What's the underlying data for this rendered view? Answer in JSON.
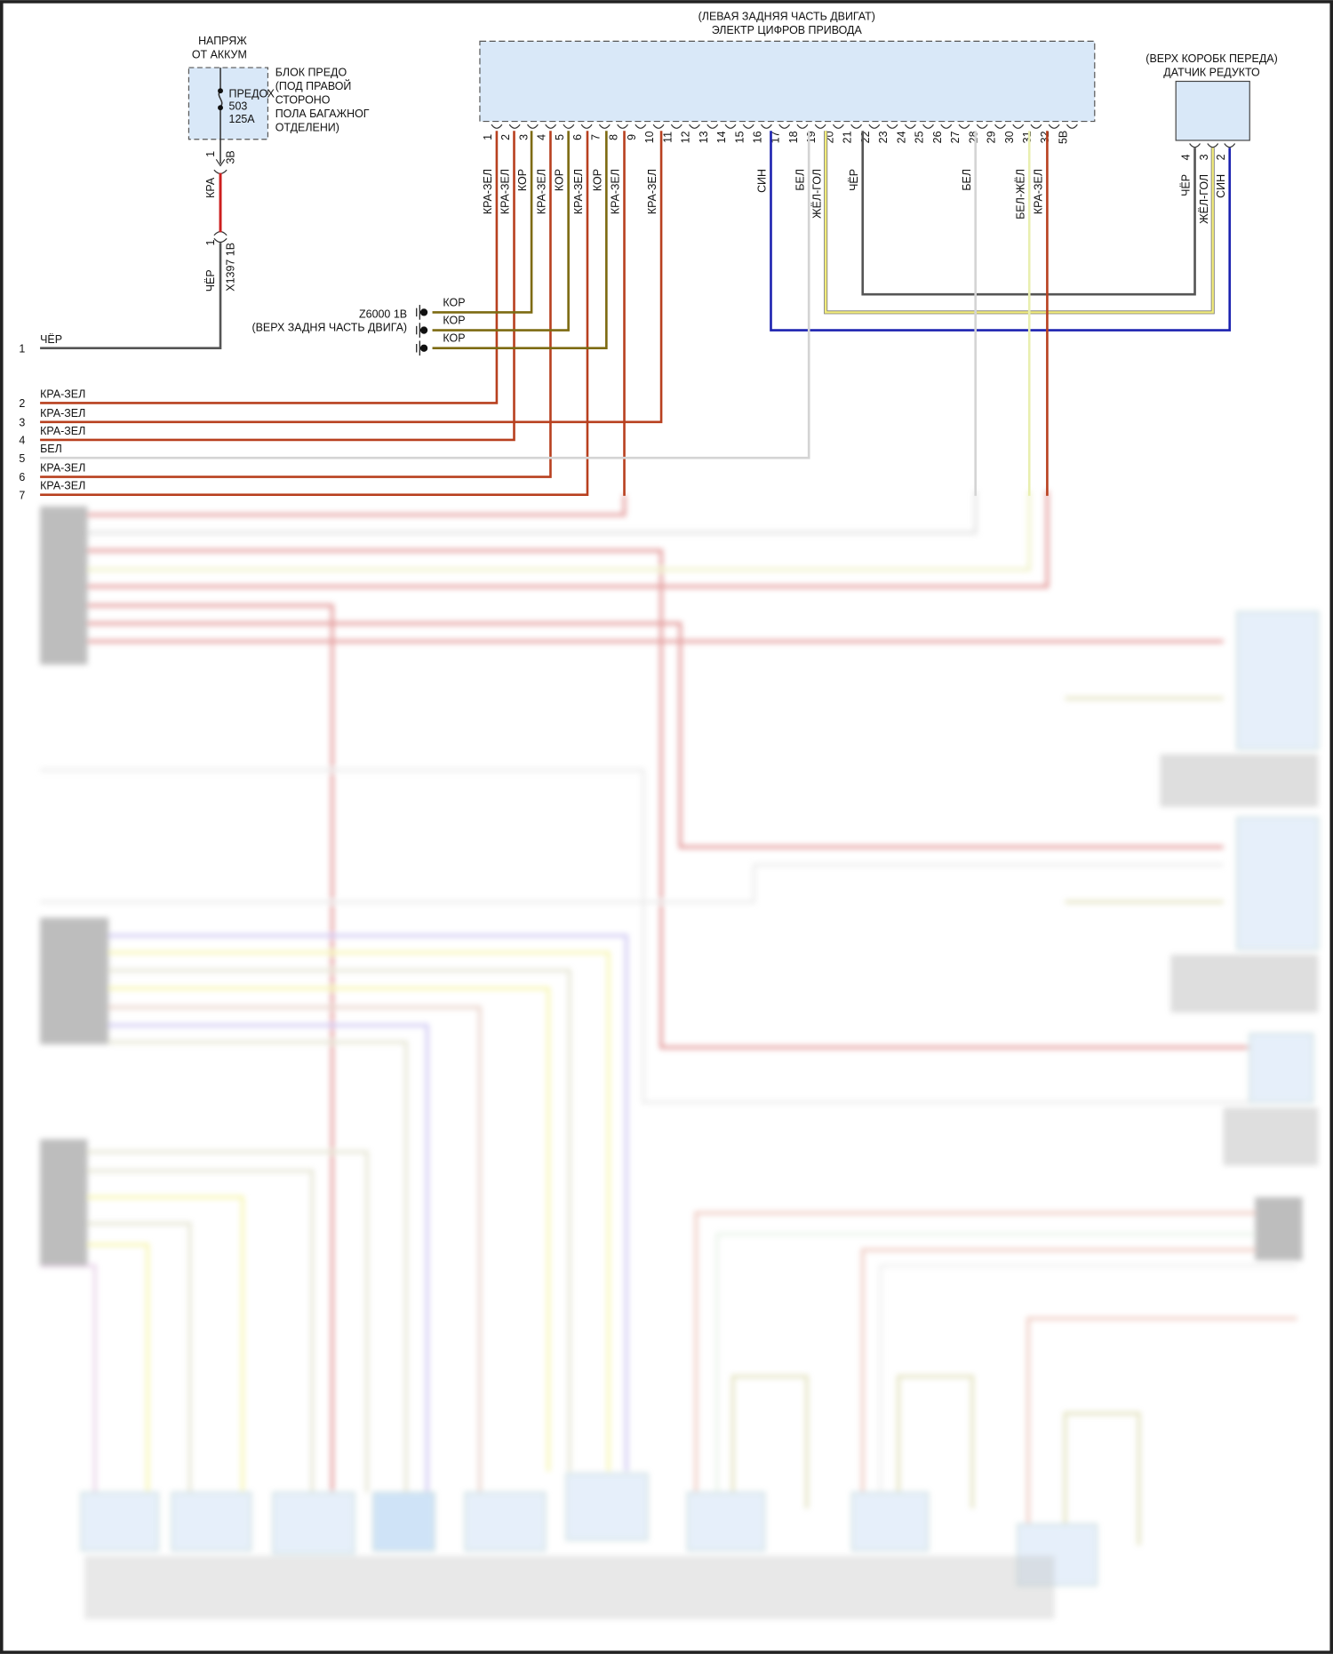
{
  "battery_supply": {
    "line1": "НАПРЯЖ",
    "line2": "ОТ АККУМ"
  },
  "fuse_box": {
    "lines": [
      "БЛОК ПРЕДО",
      "(ПОД ПРАВОЙ",
      "СТОРОНО",
      "ПОЛА БАГАЖНОГ",
      "ОТДЕЛЕНИ)"
    ],
    "fuse": [
      "ПРЕДОХ",
      "503",
      "125А"
    ]
  },
  "fuse_wire": {
    "pin_top": "1",
    "connector_top": "3В",
    "color_top": "КРА",
    "pin_bottom": "1",
    "connector_bottom": "X1397 1В",
    "color_bottom": "ЧЁР"
  },
  "ecu": {
    "title1": "(ЛЕВАЯ ЗАДНЯЯ ЧАСТЬ ДВИГАТ)",
    "title2": "ЭЛЕКТР ЦИФРОВ ПРИВОДА",
    "pins": [
      "1",
      "2",
      "3",
      "4",
      "5",
      "6",
      "7",
      "8",
      "9",
      "10",
      "11",
      "12",
      "13",
      "14",
      "15",
      "16",
      "17",
      "18",
      "19",
      "20",
      "21",
      "22",
      "23",
      "24",
      "25",
      "26",
      "27",
      "28",
      "29",
      "30",
      "31",
      "32",
      "5В"
    ],
    "wires": [
      {
        "pin": "1",
        "color": "КРА-ЗЕЛ"
      },
      {
        "pin": "2",
        "color": "КРА-ЗЕЛ"
      },
      {
        "pin": "3",
        "color": "КОР"
      },
      {
        "pin": "4",
        "color": "КРА-ЗЕЛ"
      },
      {
        "pin": "5",
        "color": "КОР"
      },
      {
        "pin": "6",
        "color": "КРА-ЗЕЛ"
      },
      {
        "pin": "7",
        "color": "КОР"
      },
      {
        "pin": "8",
        "color": "КРА-ЗЕЛ"
      },
      {
        "pin": "10",
        "color": "КРА-ЗЕЛ"
      },
      {
        "pin": "16",
        "color": "СИН"
      },
      {
        "pin": "18",
        "color": "БЕЛ"
      },
      {
        "pin": "19",
        "color": "ЖЁЛ-ГОЛ"
      },
      {
        "pin": "21",
        "color": "ЧЁР"
      },
      {
        "pin": "27",
        "color": "БЕЛ"
      },
      {
        "pin": "31",
        "color": "БЕЛ-ЖЁЛ"
      },
      {
        "pin": "32",
        "color": "КРА-ЗЕЛ"
      }
    ]
  },
  "gearbox_sensor": {
    "title1": "(ВЕРХ КОРОБК ПЕРЕДА)",
    "title2": "ДАТЧИК РЕДУКТО",
    "wires": [
      {
        "pin": "4",
        "color": "ЧЁР"
      },
      {
        "pin": "3",
        "color": "ЖЁЛ-ГОЛ"
      },
      {
        "pin": "2",
        "color": "СИН"
      }
    ]
  },
  "ground": {
    "id": "Z6000 1В",
    "location": "(ВЕРХ ЗАДНЯ ЧАСТЬ ДВИГА)",
    "wire_colors": [
      "КОР",
      "КОР",
      "КОР"
    ]
  },
  "harness_rows": [
    {
      "num": "1",
      "color": "ЧЁР"
    },
    {
      "num": "2",
      "color": "КРА-ЗЕЛ"
    },
    {
      "num": "3",
      "color": "КРА-ЗЕЛ"
    },
    {
      "num": "4",
      "color": "КРА-ЗЕЛ"
    },
    {
      "num": "5",
      "color": "БЕЛ"
    },
    {
      "num": "6",
      "color": "КРА-ЗЕЛ"
    },
    {
      "num": "7",
      "color": "КРА-ЗЕЛ"
    }
  ],
  "colors": {
    "red_green": "#b8401f",
    "red": "#cc1f1f",
    "brown": "#7d6b12",
    "blue": "#1c22b0",
    "yellow": "#e6df74",
    "black": "#555555",
    "white": "#cfcfcf",
    "white_yellow": "#e9efb0",
    "component_fill": "#d9e8f8"
  }
}
